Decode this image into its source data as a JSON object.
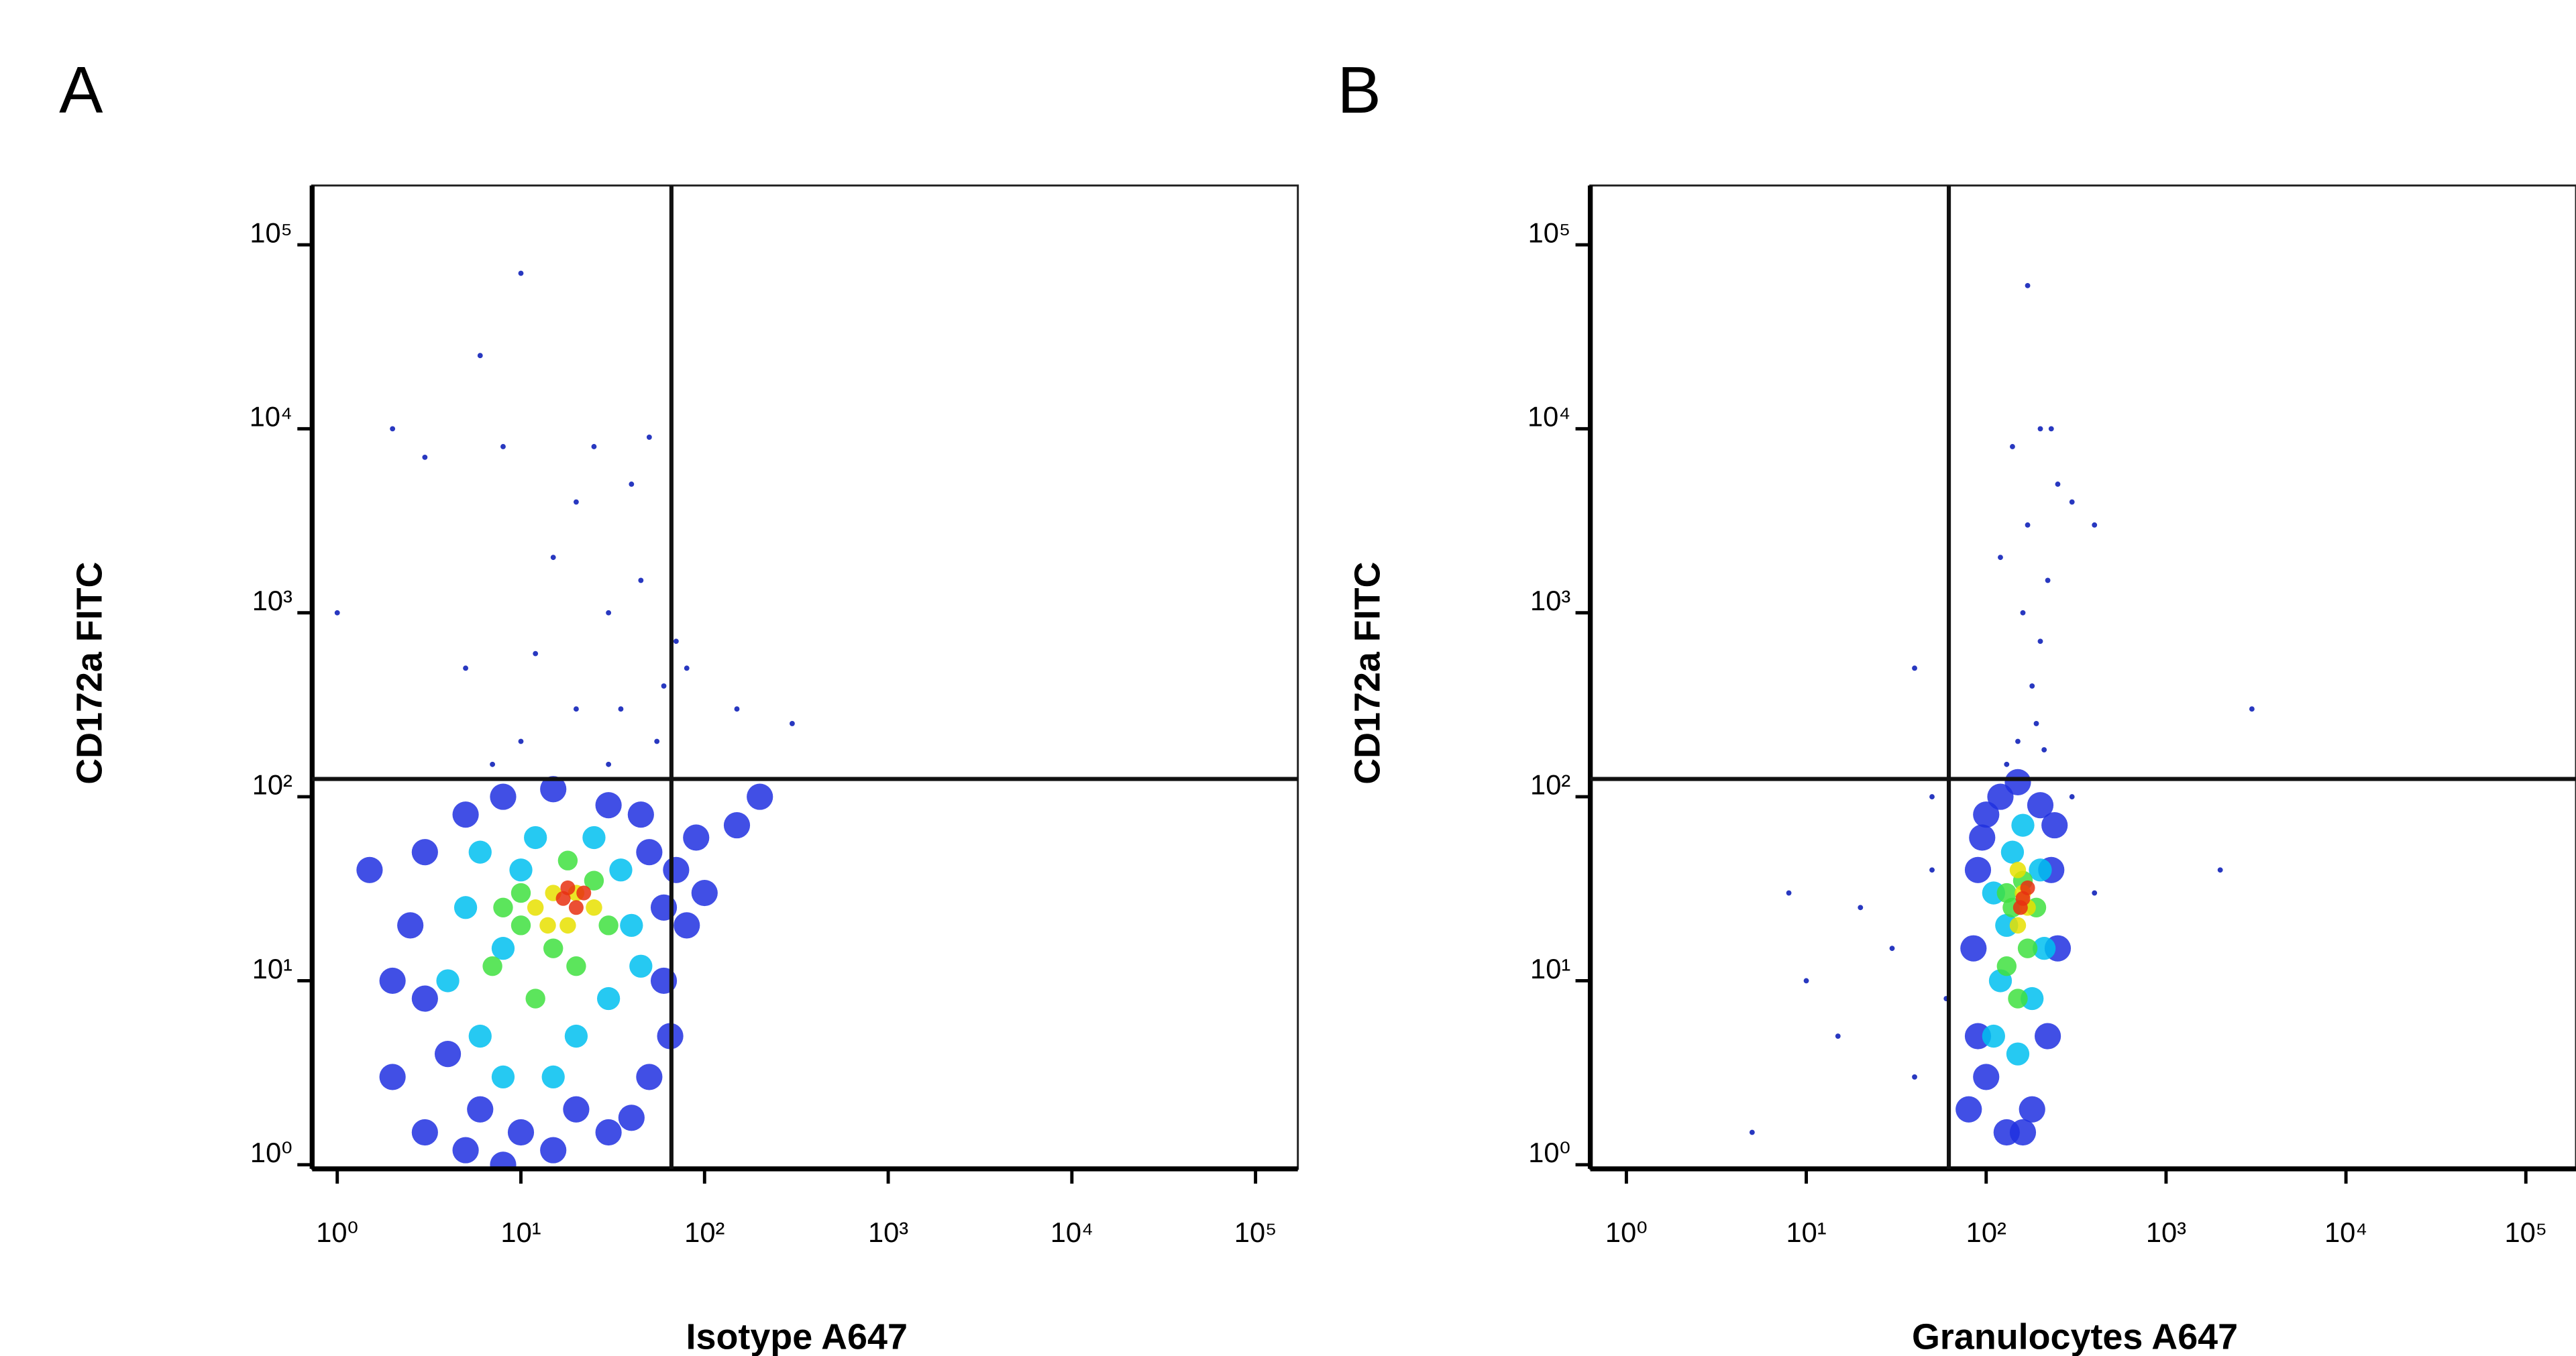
{
  "chart_data": [
    {
      "type": "scatter",
      "label": "A",
      "xlabel": "Isotype A647",
      "ylabel": "CD172a FITC",
      "xlog": true,
      "ylog": true,
      "xlim": [
        0.73,
        170000
      ],
      "ylim": [
        0.95,
        210000
      ],
      "xticks": [
        {
          "value": 1,
          "label": "10⁰"
        },
        {
          "value": 10,
          "label": "10¹"
        },
        {
          "value": 100,
          "label": "10²"
        },
        {
          "value": 1000,
          "label": "10³"
        },
        {
          "value": 10000,
          "label": "10⁴"
        },
        {
          "value": 100000,
          "label": "10⁵"
        }
      ],
      "yticks": [
        {
          "value": 1,
          "label": "10⁰"
        },
        {
          "value": 10,
          "label": "10¹"
        },
        {
          "value": 100,
          "label": "10²"
        },
        {
          "value": 1000,
          "label": "10³"
        },
        {
          "value": 10000,
          "label": "10⁴"
        },
        {
          "value": 100000,
          "label": "10⁵"
        }
      ],
      "quadrant_gate": {
        "x": 66,
        "y": 125
      },
      "series": [
        {
          "color": "#2838c0",
          "x": [
            10,
            20,
            30,
            15,
            40,
            8,
            25,
            50,
            5,
            35,
            60,
            12,
            45,
            20,
            3,
            70,
            150,
            300,
            80,
            30,
            7,
            55,
            2,
            10,
            6,
            1
          ],
          "y": [
            200,
            300,
            1000,
            2000,
            5000,
            8000,
            8000,
            9000,
            500,
            300,
            400,
            600,
            1500,
            4000,
            7000,
            700,
            300,
            250,
            500,
            150,
            150,
            200,
            10000,
            70000,
            25000,
            1000
          ]
        },
        {
          "color": "#2030e0",
          "x": [
            2,
            3,
            3,
            2.5,
            3,
            5,
            5,
            8,
            8,
            15,
            15,
            30,
            30,
            50,
            50,
            60,
            60,
            4,
            40,
            2,
            6,
            20,
            10,
            45,
            65,
            70,
            80,
            90,
            100,
            150,
            200,
            1.5
          ],
          "y": [
            3,
            1.5,
            8,
            20,
            50,
            1.2,
            80,
            1,
            100,
            1.2,
            110,
            1.5,
            90,
            3,
            50,
            10,
            25,
            4,
            1.8,
            10,
            2,
            2,
            1.5,
            80,
            5,
            40,
            20,
            60,
            30,
            70,
            100,
            40
          ]
        },
        {
          "color": "#00c0f0",
          "x": [
            4,
            5,
            6,
            8,
            10,
            12,
            20,
            30,
            35,
            40,
            8,
            15,
            25,
            6,
            45
          ],
          "y": [
            10,
            25,
            5,
            3,
            40,
            60,
            5,
            8,
            40,
            20,
            15,
            3,
            60,
            50,
            12
          ]
        },
        {
          "color": "#40e040",
          "x": [
            7,
            10,
            12,
            15,
            20,
            25,
            30,
            10,
            18,
            8
          ],
          "y": [
            12,
            20,
            8,
            15,
            12,
            35,
            20,
            30,
            45,
            25
          ]
        },
        {
          "color": "#e8e000",
          "x": [
            12,
            15,
            20,
            25,
            18,
            14
          ],
          "y": [
            25,
            30,
            30,
            25,
            20,
            20
          ]
        },
        {
          "color": "#e83010",
          "x": [
            17,
            20,
            22,
            18
          ],
          "y": [
            28,
            25,
            30,
            32
          ]
        }
      ]
    },
    {
      "type": "scatter",
      "label": "B",
      "xlabel": "Granulocytes A647",
      "ylabel": "CD172a FITC",
      "xlog": true,
      "ylog": true,
      "xlim": [
        0.63,
        190000
      ],
      "ylim": [
        0.95,
        210000
      ],
      "xticks": [
        {
          "value": 1,
          "label": "10⁰"
        },
        {
          "value": 10,
          "label": "10¹"
        },
        {
          "value": 100,
          "label": "10²"
        },
        {
          "value": 1000,
          "label": "10³"
        },
        {
          "value": 10000,
          "label": "10⁴"
        },
        {
          "value": 100000,
          "label": "10⁵"
        }
      ],
      "yticks": [
        {
          "value": 1,
          "label": "10⁰"
        },
        {
          "value": 10,
          "label": "10¹"
        },
        {
          "value": 100,
          "label": "10²"
        },
        {
          "value": 1000,
          "label": "10³"
        },
        {
          "value": 10000,
          "label": "10⁴"
        },
        {
          "value": 100000,
          "label": "10⁵"
        }
      ],
      "quadrant_gate": {
        "x": 62,
        "y": 125
      },
      "series": [
        {
          "color": "#2838c0",
          "x": [
            150,
            180,
            200,
            160,
            220,
            170,
            250,
            140,
            200,
            230,
            300,
            120,
            400,
            170,
            40,
            20,
            10,
            8,
            30,
            15,
            50,
            40,
            60,
            5,
            3000,
            2000,
            400,
            300,
            130,
            190,
            210,
            50
          ],
          "y": [
            200,
            400,
            700,
            1000,
            1500,
            3000,
            5000,
            8000,
            10000,
            10000,
            4000,
            2000,
            3000,
            60000,
            500,
            25,
            10,
            30,
            15,
            5,
            40,
            3,
            8,
            1.5,
            300,
            40,
            30,
            100,
            150,
            250,
            180,
            100
          ]
        },
        {
          "color": "#2030e0",
          "x": [
            80,
            90,
            85,
            90,
            100,
            120,
            150,
            200,
            230,
            250,
            220,
            180,
            130,
            100,
            95,
            240,
            160
          ],
          "y": [
            2,
            5,
            15,
            40,
            80,
            100,
            120,
            90,
            40,
            15,
            5,
            2,
            1.5,
            3,
            60,
            70,
            1.5
          ]
        },
        {
          "color": "#00c0f0",
          "x": [
            110,
            120,
            130,
            140,
            160,
            200,
            210,
            180,
            150,
            110
          ],
          "y": [
            5,
            10,
            20,
            50,
            70,
            40,
            15,
            8,
            4,
            30
          ]
        },
        {
          "color": "#40e040",
          "x": [
            130,
            140,
            160,
            190,
            170,
            150,
            130
          ],
          "y": [
            12,
            25,
            35,
            25,
            15,
            8,
            30
          ]
        },
        {
          "color": "#e8e000",
          "x": [
            150,
            170,
            160,
            150
          ],
          "y": [
            20,
            25,
            30,
            40
          ]
        },
        {
          "color": "#e83010",
          "x": [
            160,
            170,
            155
          ],
          "y": [
            28,
            32,
            25
          ]
        }
      ]
    }
  ]
}
